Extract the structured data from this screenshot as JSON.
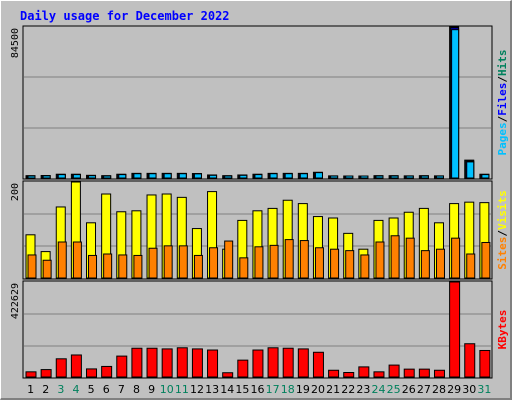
{
  "title": "Daily usage for December 2022",
  "colors": {
    "hits": "#00805c",
    "files": "#0000ff",
    "pages": "#00c0ff",
    "visits": "#ffff00",
    "sites": "#ff8000",
    "kbytes": "#ff0000"
  },
  "chart_data": [
    {
      "type": "bar",
      "categories": [
        "1",
        "2",
        "3",
        "4",
        "5",
        "6",
        "7",
        "8",
        "9",
        "10",
        "11",
        "12",
        "13",
        "14",
        "15",
        "16",
        "17",
        "18",
        "19",
        "20",
        "21",
        "22",
        "23",
        "24",
        "25",
        "26",
        "27",
        "28",
        "29",
        "30",
        "31"
      ],
      "weekend_days": [
        "3",
        "4",
        "10",
        "11",
        "17",
        "18",
        "24",
        "25",
        "31"
      ],
      "tick_label": "84500",
      "ylim": [
        0,
        84500
      ],
      "side_label": [
        "Pages",
        "/",
        "Files",
        "/",
        "Hits"
      ],
      "series": [
        {
          "name": "Hits",
          "values": [
            1300,
            1400,
            2100,
            2100,
            1500,
            1300,
            2100,
            2600,
            2600,
            2600,
            2600,
            2500,
            1700,
            1300,
            1700,
            2100,
            2600,
            2600,
            2600,
            3200,
            1200,
            900,
            900,
            1300,
            1300,
            1200,
            1300,
            1200,
            84500,
            10000,
            2100
          ]
        },
        {
          "name": "Files",
          "values": [
            1200,
            1300,
            2000,
            2000,
            1400,
            1200,
            2000,
            2500,
            2500,
            2500,
            2500,
            2400,
            1600,
            1200,
            1600,
            2000,
            2500,
            2500,
            2500,
            3100,
            1100,
            800,
            800,
            1200,
            1200,
            1100,
            1200,
            1100,
            84000,
            9500,
            2000
          ]
        },
        {
          "name": "Pages",
          "values": [
            1100,
            1200,
            1900,
            1900,
            1300,
            1100,
            1900,
            2400,
            2400,
            2400,
            2400,
            2300,
            1500,
            1100,
            1500,
            1900,
            2400,
            2400,
            2400,
            3000,
            1000,
            700,
            700,
            1100,
            1100,
            1000,
            1100,
            1000,
            83000,
            9000,
            1900
          ]
        }
      ]
    },
    {
      "type": "bar",
      "categories": [
        "1",
        "2",
        "3",
        "4",
        "5",
        "6",
        "7",
        "8",
        "9",
        "10",
        "11",
        "12",
        "13",
        "14",
        "15",
        "16",
        "17",
        "18",
        "19",
        "20",
        "21",
        "22",
        "23",
        "24",
        "25",
        "26",
        "27",
        "28",
        "29",
        "30",
        "31"
      ],
      "tick_label": "200",
      "ylim": [
        0,
        200
      ],
      "side_label": [
        "Sites",
        "/",
        "Visits"
      ],
      "series": [
        {
          "name": "Visits",
          "values": [
            90,
            55,
            148,
            200,
            115,
            175,
            138,
            140,
            173,
            175,
            168,
            103,
            180,
            60,
            120,
            140,
            145,
            162,
            155,
            128,
            125,
            93,
            60,
            120,
            125,
            137,
            145,
            115,
            155,
            158,
            157
          ]
        },
        {
          "name": "Sites",
          "values": [
            48,
            37,
            75,
            75,
            47,
            50,
            48,
            47,
            62,
            67,
            67,
            47,
            63,
            77,
            42,
            65,
            68,
            80,
            78,
            63,
            60,
            57,
            48,
            75,
            88,
            83,
            57,
            60,
            83,
            50,
            74
          ]
        }
      ]
    },
    {
      "type": "bar",
      "categories": [
        "1",
        "2",
        "3",
        "4",
        "5",
        "6",
        "7",
        "8",
        "9",
        "10",
        "11",
        "12",
        "13",
        "14",
        "15",
        "16",
        "17",
        "18",
        "19",
        "20",
        "21",
        "22",
        "23",
        "24",
        "25",
        "26",
        "27",
        "28",
        "29",
        "30",
        "31"
      ],
      "tick_label": "422629",
      "ylim": [
        0,
        422629
      ],
      "side_label": [
        "KBytes"
      ],
      "series": [
        {
          "name": "KBytes",
          "values": [
            23000,
            33000,
            81000,
            98000,
            36000,
            47000,
            93000,
            128000,
            128000,
            125000,
            130000,
            125000,
            120000,
            19000,
            75000,
            120000,
            130000,
            128000,
            125000,
            110000,
            30000,
            20000,
            45000,
            23000,
            53000,
            35000,
            35000,
            30000,
            422629,
            148000,
            118000
          ]
        }
      ]
    }
  ]
}
